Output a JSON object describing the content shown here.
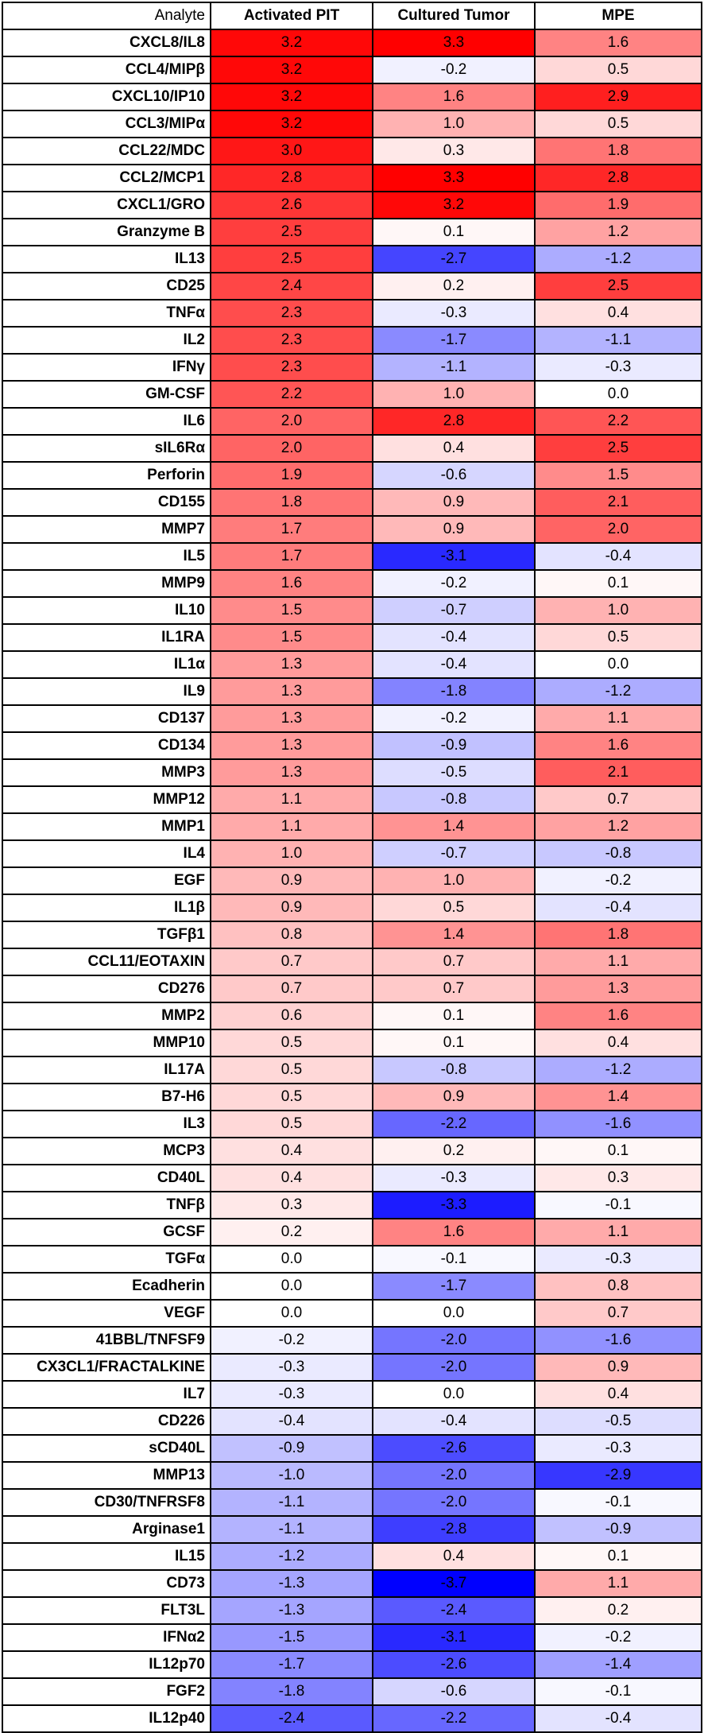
{
  "chart_data": {
    "type": "heatmap",
    "title": "",
    "row_header": "Analyte",
    "columns": [
      "Activated PIT",
      "Cultured Tumor",
      "MPE"
    ],
    "color_scale": {
      "min": -3.7,
      "max": 3.3,
      "low_color": "#0000ff",
      "mid_color": "#ffffff",
      "high_color": "#ff0000"
    },
    "rows": [
      {
        "analyte": "CXCL8/IL8",
        "values": [
          3.2,
          3.3,
          1.6
        ]
      },
      {
        "analyte": "CCL4/MIPβ",
        "values": [
          3.2,
          -0.2,
          0.5
        ]
      },
      {
        "analyte": "CXCL10/IP10",
        "values": [
          3.2,
          1.6,
          2.9
        ]
      },
      {
        "analyte": "CCL3/MIPα",
        "values": [
          3.2,
          1.0,
          0.5
        ]
      },
      {
        "analyte": "CCL22/MDC",
        "values": [
          3.0,
          0.3,
          1.8
        ]
      },
      {
        "analyte": "CCL2/MCP1",
        "values": [
          2.8,
          3.3,
          2.8
        ]
      },
      {
        "analyte": "CXCL1/GRO",
        "values": [
          2.6,
          3.2,
          1.9
        ]
      },
      {
        "analyte": "Granzyme B",
        "values": [
          2.5,
          0.1,
          1.2
        ]
      },
      {
        "analyte": "IL13",
        "values": [
          2.5,
          -2.7,
          -1.2
        ]
      },
      {
        "analyte": "CD25",
        "values": [
          2.4,
          0.2,
          2.5
        ]
      },
      {
        "analyte": "TNFα",
        "values": [
          2.3,
          -0.3,
          0.4
        ]
      },
      {
        "analyte": "IL2",
        "values": [
          2.3,
          -1.7,
          -1.1
        ]
      },
      {
        "analyte": "IFNγ",
        "values": [
          2.3,
          -1.1,
          -0.3
        ]
      },
      {
        "analyte": "GM-CSF",
        "values": [
          2.2,
          1.0,
          0.0
        ]
      },
      {
        "analyte": "IL6",
        "values": [
          2.0,
          2.8,
          2.2
        ]
      },
      {
        "analyte": "sIL6Rα",
        "values": [
          2.0,
          0.4,
          2.5
        ]
      },
      {
        "analyte": "Perforin",
        "values": [
          1.9,
          -0.6,
          1.5
        ]
      },
      {
        "analyte": "CD155",
        "values": [
          1.8,
          0.9,
          2.1
        ]
      },
      {
        "analyte": "MMP7",
        "values": [
          1.7,
          0.9,
          2.0
        ]
      },
      {
        "analyte": "IL5",
        "values": [
          1.7,
          -3.1,
          -0.4
        ]
      },
      {
        "analyte": "MMP9",
        "values": [
          1.6,
          -0.2,
          0.1
        ]
      },
      {
        "analyte": "IL10",
        "values": [
          1.5,
          -0.7,
          1.0
        ]
      },
      {
        "analyte": "IL1RA",
        "values": [
          1.5,
          -0.4,
          0.5
        ]
      },
      {
        "analyte": "IL1α",
        "values": [
          1.3,
          -0.4,
          0.0
        ]
      },
      {
        "analyte": "IL9",
        "values": [
          1.3,
          -1.8,
          -1.2
        ]
      },
      {
        "analyte": "CD137",
        "values": [
          1.3,
          -0.2,
          1.1
        ]
      },
      {
        "analyte": "CD134",
        "values": [
          1.3,
          -0.9,
          1.6
        ]
      },
      {
        "analyte": "MMP3",
        "values": [
          1.3,
          -0.5,
          2.1
        ]
      },
      {
        "analyte": "MMP12",
        "values": [
          1.1,
          -0.8,
          0.7
        ]
      },
      {
        "analyte": "MMP1",
        "values": [
          1.1,
          1.4,
          1.2
        ]
      },
      {
        "analyte": "IL4",
        "values": [
          1.0,
          -0.7,
          -0.8
        ]
      },
      {
        "analyte": "EGF",
        "values": [
          0.9,
          1.0,
          -0.2
        ]
      },
      {
        "analyte": "IL1β",
        "values": [
          0.9,
          0.5,
          -0.4
        ]
      },
      {
        "analyte": "TGFβ1",
        "values": [
          0.8,
          1.4,
          1.8
        ]
      },
      {
        "analyte": "CCL11/EOTAXIN",
        "values": [
          0.7,
          0.7,
          1.1
        ]
      },
      {
        "analyte": "CD276",
        "values": [
          0.7,
          0.7,
          1.3
        ]
      },
      {
        "analyte": "MMP2",
        "values": [
          0.6,
          0.1,
          1.6
        ]
      },
      {
        "analyte": "MMP10",
        "values": [
          0.5,
          0.1,
          0.4
        ]
      },
      {
        "analyte": "IL17A",
        "values": [
          0.5,
          -0.8,
          -1.2
        ]
      },
      {
        "analyte": "B7-H6",
        "values": [
          0.5,
          0.9,
          1.4
        ]
      },
      {
        "analyte": "IL3",
        "values": [
          0.5,
          -2.2,
          -1.6
        ]
      },
      {
        "analyte": "MCP3",
        "values": [
          0.4,
          0.2,
          0.1
        ]
      },
      {
        "analyte": "CD40L",
        "values": [
          0.4,
          -0.3,
          0.3
        ]
      },
      {
        "analyte": "TNFβ",
        "values": [
          0.3,
          -3.3,
          -0.1
        ]
      },
      {
        "analyte": "GCSF",
        "values": [
          0.2,
          1.6,
          1.1
        ]
      },
      {
        "analyte": "TGFα",
        "values": [
          0.0,
          -0.1,
          -0.3
        ]
      },
      {
        "analyte": "Ecadherin",
        "values": [
          0.0,
          -1.7,
          0.8
        ]
      },
      {
        "analyte": "VEGF",
        "values": [
          0.0,
          0.0,
          0.7
        ]
      },
      {
        "analyte": "41BBL/TNFSF9",
        "values": [
          -0.2,
          -2.0,
          -1.6
        ]
      },
      {
        "analyte": "CX3CL1/FRACTALKINE",
        "values": [
          -0.3,
          -2.0,
          0.9
        ]
      },
      {
        "analyte": "IL7",
        "values": [
          -0.3,
          0.0,
          0.4
        ]
      },
      {
        "analyte": "CD226",
        "values": [
          -0.4,
          -0.4,
          -0.5
        ]
      },
      {
        "analyte": "sCD40L",
        "values": [
          -0.9,
          -2.6,
          -0.3
        ]
      },
      {
        "analyte": "MMP13",
        "values": [
          -1.0,
          -2.0,
          -2.9
        ]
      },
      {
        "analyte": "CD30/TNFRSF8",
        "values": [
          -1.1,
          -2.0,
          -0.1
        ]
      },
      {
        "analyte": "Arginase1",
        "values": [
          -1.1,
          -2.8,
          -0.9
        ]
      },
      {
        "analyte": "IL15",
        "values": [
          -1.2,
          0.4,
          0.1
        ]
      },
      {
        "analyte": "CD73",
        "values": [
          -1.3,
          -3.7,
          1.1
        ]
      },
      {
        "analyte": "FLT3L",
        "values": [
          -1.3,
          -2.4,
          0.2
        ]
      },
      {
        "analyte": "IFNα2",
        "values": [
          -1.5,
          -3.1,
          -0.2
        ]
      },
      {
        "analyte": "IL12p70",
        "values": [
          -1.7,
          -2.6,
          -1.4
        ]
      },
      {
        "analyte": "FGF2",
        "values": [
          -1.8,
          -0.6,
          -0.1
        ]
      },
      {
        "analyte": "IL12p40",
        "values": [
          -2.4,
          -2.2,
          -0.4
        ]
      }
    ]
  }
}
